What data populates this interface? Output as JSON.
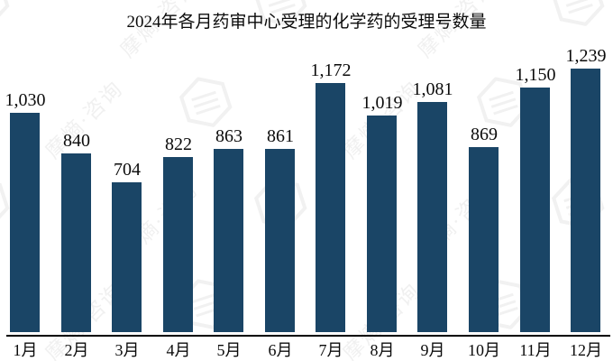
{
  "title": "2024年各月药审中心受理的化学药的受理号数量",
  "watermark": {
    "text": "摩熵·咨询",
    "icon": "hexagon-seal-icon"
  },
  "colors": {
    "bar": "#1a4566",
    "axis": "#000000",
    "text": "#0b0b0b",
    "watermark": "#8f8f8f",
    "background": "#ffffff"
  },
  "chart_data": {
    "type": "bar",
    "title": "2024年各月药审中心受理的化学药的受理号数量",
    "categories": [
      "1月",
      "2月",
      "3月",
      "4月",
      "5月",
      "6月",
      "7月",
      "8月",
      "9月",
      "10月",
      "11月",
      "12月"
    ],
    "values": [
      1030,
      840,
      704,
      822,
      863,
      861,
      1172,
      1019,
      1081,
      869,
      1150,
      1239
    ],
    "value_labels": [
      "1,030",
      "840",
      "704",
      "822",
      "863",
      "861",
      "1,172",
      "1,019",
      "1,081",
      "869",
      "1,150",
      "1,239"
    ],
    "xlabel": "",
    "ylabel": "",
    "ylim": [
      0,
      1430
    ],
    "grid": false,
    "legend": false,
    "data_labels": true,
    "bar_color": "#1a4566"
  }
}
